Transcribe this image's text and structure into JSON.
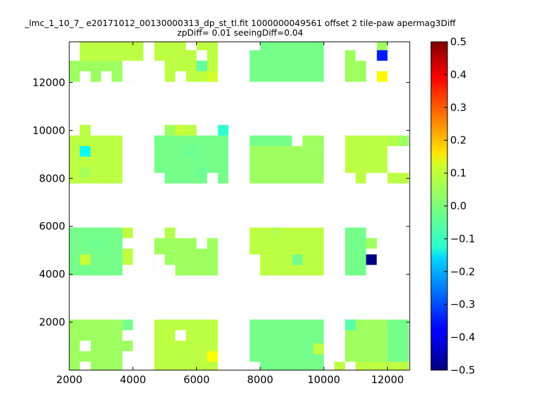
{
  "chart_data": {
    "type": "heatmap",
    "title": "_lmc_1_10_7_ e20171012_00130000313_dp_st_tl.fit 1000000049561 offset 2 tile-paw apermag3Diff",
    "subtitle": "zpDiff= 0.01 seeingDiff=0.04",
    "xlabel": "",
    "ylabel": "",
    "xlim": [
      2000,
      12700
    ],
    "ylim": [
      0,
      13700
    ],
    "x_ticks": [
      "2000",
      "4000",
      "6000",
      "8000",
      "10000",
      "12000"
    ],
    "y_ticks": [
      "2000",
      "4000",
      "6000",
      "8000",
      "10000",
      "12000"
    ],
    "cell_size": [
      333,
      440
    ],
    "colorbar": {
      "range": [
        -0.5,
        0.5
      ],
      "colormap": "jet",
      "ticks": [
        "0.5",
        "0.4",
        "0.3",
        "0.2",
        "0.1",
        "0.0",
        "−0.1",
        "−0.2",
        "−0.3",
        "−0.4",
        "−0.5"
      ]
    },
    "default_value": 0.03,
    "regions": [
      {
        "x": [
          2000,
          4330
        ],
        "y": [
          12030,
          13700
        ]
      },
      {
        "x": [
          4670,
          6670
        ],
        "y": [
          12030,
          13700
        ]
      },
      {
        "x": [
          7670,
          10000
        ],
        "y": [
          12030,
          13700
        ]
      },
      {
        "x": [
          10670,
          12000
        ],
        "y": [
          12030,
          13700
        ]
      },
      {
        "x": [
          2000,
          3670
        ],
        "y": [
          7790,
          9790
        ]
      },
      {
        "x": [
          4670,
          6670
        ],
        "y": [
          7790,
          9790
        ]
      },
      {
        "x": [
          7670,
          10000
        ],
        "y": [
          7790,
          9350
        ]
      },
      {
        "x": [
          10670,
          12000
        ],
        "y": [
          7790,
          9790
        ]
      },
      {
        "x": [
          2000,
          3670
        ],
        "y": [
          3950,
          5950
        ]
      },
      {
        "x": [
          4670,
          6670
        ],
        "y": [
          3950,
          5510
        ]
      },
      {
        "x": [
          7670,
          10000
        ],
        "y": [
          3950,
          5950
        ]
      },
      {
        "x": [
          10670,
          11330
        ],
        "y": [
          3950,
          5950
        ]
      },
      {
        "x": [
          2000,
          3670
        ],
        "y": [
          0,
          2110
        ]
      },
      {
        "x": [
          4670,
          6670
        ],
        "y": [
          0,
          2110
        ]
      },
      {
        "x": [
          7670,
          10000
        ],
        "y": [
          0,
          2110
        ]
      },
      {
        "x": [
          10670,
          12000
        ],
        "y": [
          0,
          2110
        ]
      },
      {
        "x": [
          2000,
          4330
        ],
        "y": [
          12910,
          13700
        ]
      },
      {
        "x": [
          2330,
          2670
        ],
        "y": [
          9790,
          10230
        ]
      },
      {
        "x": [
          5000,
          6000
        ],
        "y": [
          9790,
          10230
        ]
      },
      {
        "x": [
          6670,
          7000
        ],
        "y": [
          9790,
          10230
        ]
      },
      {
        "x": [
          6670,
          7000
        ],
        "y": [
          7790,
          9790
        ]
      },
      {
        "x": [
          12000,
          12670
        ],
        "y": [
          9350,
          9790
        ]
      },
      {
        "x": [
          12000,
          12670
        ],
        "y": [
          7790,
          8230
        ]
      },
      {
        "x": [
          7670,
          9000
        ],
        "y": [
          9350,
          9790
        ]
      },
      {
        "x": [
          9330,
          10000
        ],
        "y": [
          9350,
          9790
        ]
      },
      {
        "x": [
          3670,
          4000
        ],
        "y": [
          5510,
          5950
        ]
      },
      {
        "x": [
          6670,
          6670
        ],
        "y": [
          5510,
          5950
        ]
      },
      {
        "x": [
          11330,
          11670
        ],
        "y": [
          5070,
          5510
        ]
      },
      {
        "x": [
          3670,
          4000
        ],
        "y": [
          4390,
          5070
        ]
      },
      {
        "x": [
          3670,
          4000
        ],
        "y": [
          1670,
          2110
        ]
      },
      {
        "x": [
          3670,
          4000
        ],
        "y": [
          790,
          1230
        ]
      },
      {
        "x": [
          10330,
          12670
        ],
        "y": [
          0,
          350
        ]
      },
      {
        "x": [
          12000,
          12670
        ],
        "y": [
          350,
          2110
        ]
      }
    ],
    "gaps": [
      {
        "x": [
          2000,
          2330
        ],
        "y": [
          12910,
          13700
        ]
      },
      {
        "x": [
          4330,
          4670
        ],
        "y": [
          12910,
          13700
        ]
      },
      {
        "x": [
          2330,
          2670
        ],
        "y": [
          12030,
          12470
        ]
      },
      {
        "x": [
          3000,
          3330
        ],
        "y": [
          12030,
          12470
        ]
      },
      {
        "x": [
          3670,
          4330
        ],
        "y": [
          12030,
          12470
        ]
      },
      {
        "x": [
          3670,
          4330
        ],
        "y": [
          12470,
          12910
        ]
      },
      {
        "x": [
          4670,
          5000
        ],
        "y": [
          12030,
          12910
        ]
      },
      {
        "x": [
          5330,
          5670
        ],
        "y": [
          12030,
          12470
        ]
      },
      {
        "x": [
          5670,
          6000
        ],
        "y": [
          13350,
          13700
        ]
      },
      {
        "x": [
          6000,
          6330
        ],
        "y": [
          12910,
          13350
        ]
      },
      {
        "x": [
          7670,
          8000
        ],
        "y": [
          13350,
          13700
        ]
      },
      {
        "x": [
          10670,
          11000
        ],
        "y": [
          13350,
          13700
        ]
      },
      {
        "x": [
          11000,
          11330
        ],
        "y": [
          12910,
          13700
        ]
      },
      {
        "x": [
          11330,
          12000
        ],
        "y": [
          12470,
          12910
        ]
      },
      {
        "x": [
          11330,
          11670
        ],
        "y": [
          12910,
          13700
        ]
      },
      {
        "x": [
          11330,
          11670
        ],
        "y": [
          12030,
          12470
        ]
      },
      {
        "x": [
          4670,
          5000
        ],
        "y": [
          7790,
          8230
        ]
      },
      {
        "x": [
          4670,
          4670
        ],
        "y": [
          7790,
          7790
        ]
      },
      {
        "x": [
          6330,
          6670
        ],
        "y": [
          7790,
          8230
        ]
      },
      {
        "x": [
          10670,
          11000
        ],
        "y": [
          7790,
          8230
        ]
      },
      {
        "x": [
          11330,
          12000
        ],
        "y": [
          7790,
          8230
        ]
      },
      {
        "x": [
          4670,
          5000
        ],
        "y": [
          3950,
          4830
        ]
      },
      {
        "x": [
          5000,
          5330
        ],
        "y": [
          3950,
          4390
        ]
      },
      {
        "x": [
          6000,
          6330
        ],
        "y": [
          5070,
          5510
        ]
      },
      {
        "x": [
          7670,
          8000
        ],
        "y": [
          3950,
          4830
        ]
      },
      {
        "x": [
          2330,
          2670
        ],
        "y": [
          790,
          1230
        ]
      },
      {
        "x": [
          2330,
          2670
        ],
        "y": [
          0,
          350
        ]
      },
      {
        "x": [
          5330,
          5670
        ],
        "y": [
          1230,
          1670
        ]
      },
      {
        "x": [
          4670,
          4670
        ],
        "y": [
          0,
          0
        ]
      },
      {
        "x": [
          7670,
          8000
        ],
        "y": [
          0,
          350
        ]
      },
      {
        "x": [
          10670,
          11000
        ],
        "y": [
          0,
          350
        ]
      }
    ],
    "cells": [
      {
        "x": 11670,
        "y": 13130,
        "v": -0.35
      },
      {
        "x": 11670,
        "y": 12250,
        "v": 0.13
      },
      {
        "x": 6330,
        "y": 12250,
        "v": 0.08
      },
      {
        "x": 6000,
        "y": 12690,
        "v": -0.03
      },
      {
        "x": 6670,
        "y": 10010,
        "v": -0.08
      },
      {
        "x": 5330,
        "y": 10010,
        "v": 0.07
      },
      {
        "x": 5670,
        "y": 10010,
        "v": 0.06
      },
      {
        "x": 2330,
        "y": 10010,
        "v": 0.06
      },
      {
        "x": 2330,
        "y": 9130,
        "v": -0.12
      },
      {
        "x": 12000,
        "y": 9570,
        "v": 0.05
      },
      {
        "x": 11330,
        "y": 4610,
        "v": -0.5
      },
      {
        "x": 2330,
        "y": 4610,
        "v": 0.07
      },
      {
        "x": 6330,
        "y": 570,
        "v": 0.12
      },
      {
        "x": 10670,
        "y": 1890,
        "v": -0.04
      },
      {
        "x": 9670,
        "y": 890,
        "v": 0.06
      },
      {
        "x": 5670,
        "y": 9130,
        "v": -0.02
      },
      {
        "x": 6000,
        "y": 8250,
        "v": -0.02
      },
      {
        "x": 2330,
        "y": 8250,
        "v": 0.04
      },
      {
        "x": 2670,
        "y": 5290,
        "v": -0.02
      },
      {
        "x": 9000,
        "y": 4610,
        "v": -0.01
      },
      {
        "x": 8330,
        "y": 5730,
        "v": 0.05
      },
      {
        "x": 5000,
        "y": 5730,
        "v": 0.05
      }
    ]
  }
}
